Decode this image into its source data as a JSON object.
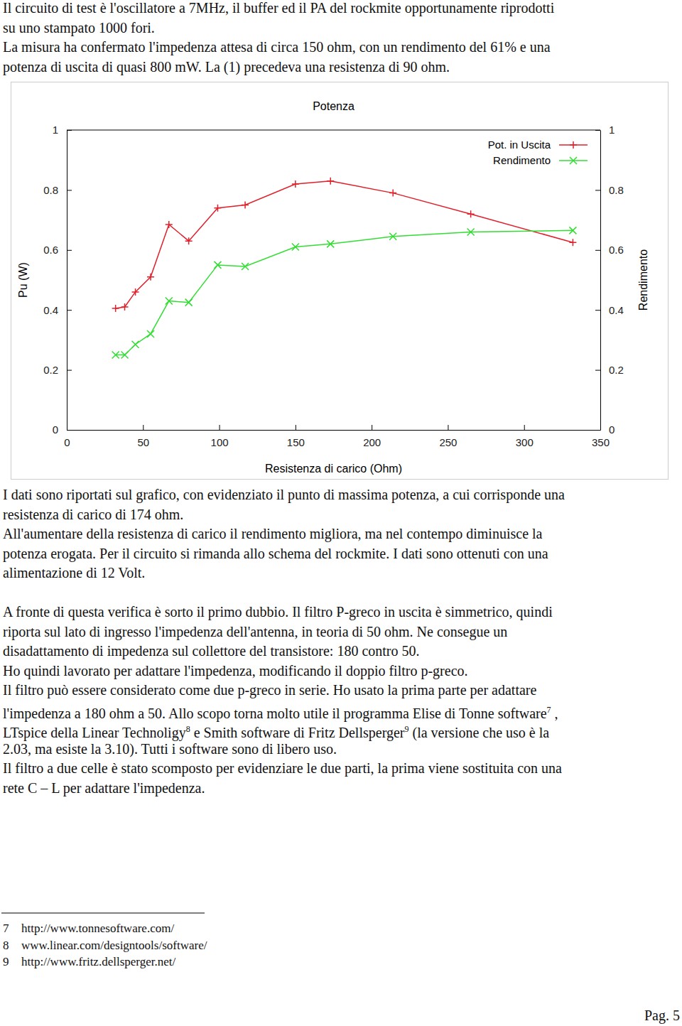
{
  "document": {
    "text_before_chart": [
      "Il circuito di test è  l'oscillatore a 7MHz, il buffer ed il PA del rockmite opportunamente riprodotti",
      "su uno stampato 1000 fori.",
      "La misura ha confermato l'impedenza attesa di circa 150 ohm, con un rendimento del 61% e una",
      "potenza di uscita di quasi 800 mW. La (1) precedeva una resistenza di 90 ohm."
    ],
    "text_after_chart": [
      [
        "I dati sono riportati sul grafico, con evidenziato il punto di massima potenza, a cui corrisponde una",
        "resistenza di carico di 174 ohm.",
        "All'aumentare della resistenza di carico il rendimento migliora, ma nel contempo diminuisce la",
        "potenza erogata. Per il circuito si rimanda allo schema del rockmite. I dati sono ottenuti con una",
        "alimentazione di 12 Volt."
      ],
      [
        "A fronte di questa verifica è sorto il primo dubbio. Il filtro P-greco in uscita è simmetrico, quindi",
        "riporta sul lato di ingresso l'impedenza dell'antenna, in teoria di 50 ohm. Ne consegue un",
        "disadattamento di impedenza sul collettore del transistore: 180 contro 50.",
        "Ho quindi lavorato per adattare l'impedenza, modificando il doppio filtro p-greco.",
        "Il filtro può essere considerato come due p-greco in serie. Ho usato la prima parte per adattare",
        [
          "l'impedenza a 180 ohm a 50. Allo scopo torna molto utile il programma Elise di Tonne software",
          {
            "sup": "7"
          },
          " ,"
        ],
        [
          "LTspice della Linear Technoligy",
          {
            "sup": "8"
          },
          " e Smith software di Fritz Dellsperger",
          {
            "sup": "9"
          },
          " (la versione che uso è la"
        ],
        "2.03, ma esiste la 3.10). Tutti i software sono di libero uso.",
        "Il filtro a due celle è stato scomposto per evidenziare le due parti, la prima viene sostituita con una",
        "rete C – L per adattare l'impedenza."
      ]
    ],
    "footnotes": [
      {
        "number": "7",
        "text": "http://www.tonnesoftware.com/"
      },
      {
        "number": "8",
        "text": "www.linear.com/designtools/software/"
      },
      {
        "number": "9",
        "text": "http://www.fritz.dellsperger.net/"
      }
    ],
    "page_number": "Pag. 5"
  },
  "chart_data": {
    "type": "line",
    "title": "Potenza",
    "xlabel": "Resistenza di carico (Ohm)",
    "ylabel": "Pu (W)",
    "y2label": "Rendimento",
    "x": [
      32,
      38,
      45,
      55,
      67,
      80,
      99,
      117,
      150,
      173,
      214,
      265,
      332
    ],
    "series": [
      {
        "name": "Pot. in Uscita",
        "color": "#e0202a",
        "marker": "plus",
        "values": [
          0.405,
          0.41,
          0.46,
          0.51,
          0.685,
          0.63,
          0.74,
          0.75,
          0.82,
          0.83,
          0.79,
          0.72,
          0.625
        ]
      },
      {
        "name": "Rendimento",
        "color": "#33dd33",
        "marker": "cross",
        "axis": "y2",
        "values": [
          0.25,
          0.25,
          0.285,
          0.32,
          0.43,
          0.425,
          0.55,
          0.545,
          0.61,
          0.62,
          0.645,
          0.66,
          0.665
        ]
      }
    ],
    "xlim": [
      0,
      350
    ],
    "xticks": [
      0,
      50,
      100,
      150,
      200,
      250,
      300,
      350
    ],
    "ylim": [
      0,
      1
    ],
    "yticks": [
      0,
      0.2,
      0.4,
      0.6,
      0.8,
      1
    ],
    "y2lim": [
      0,
      1
    ],
    "y2ticks": [
      0,
      0.2,
      0.4,
      0.6,
      0.8,
      1
    ],
    "grid": false,
    "legend": "top-right"
  }
}
